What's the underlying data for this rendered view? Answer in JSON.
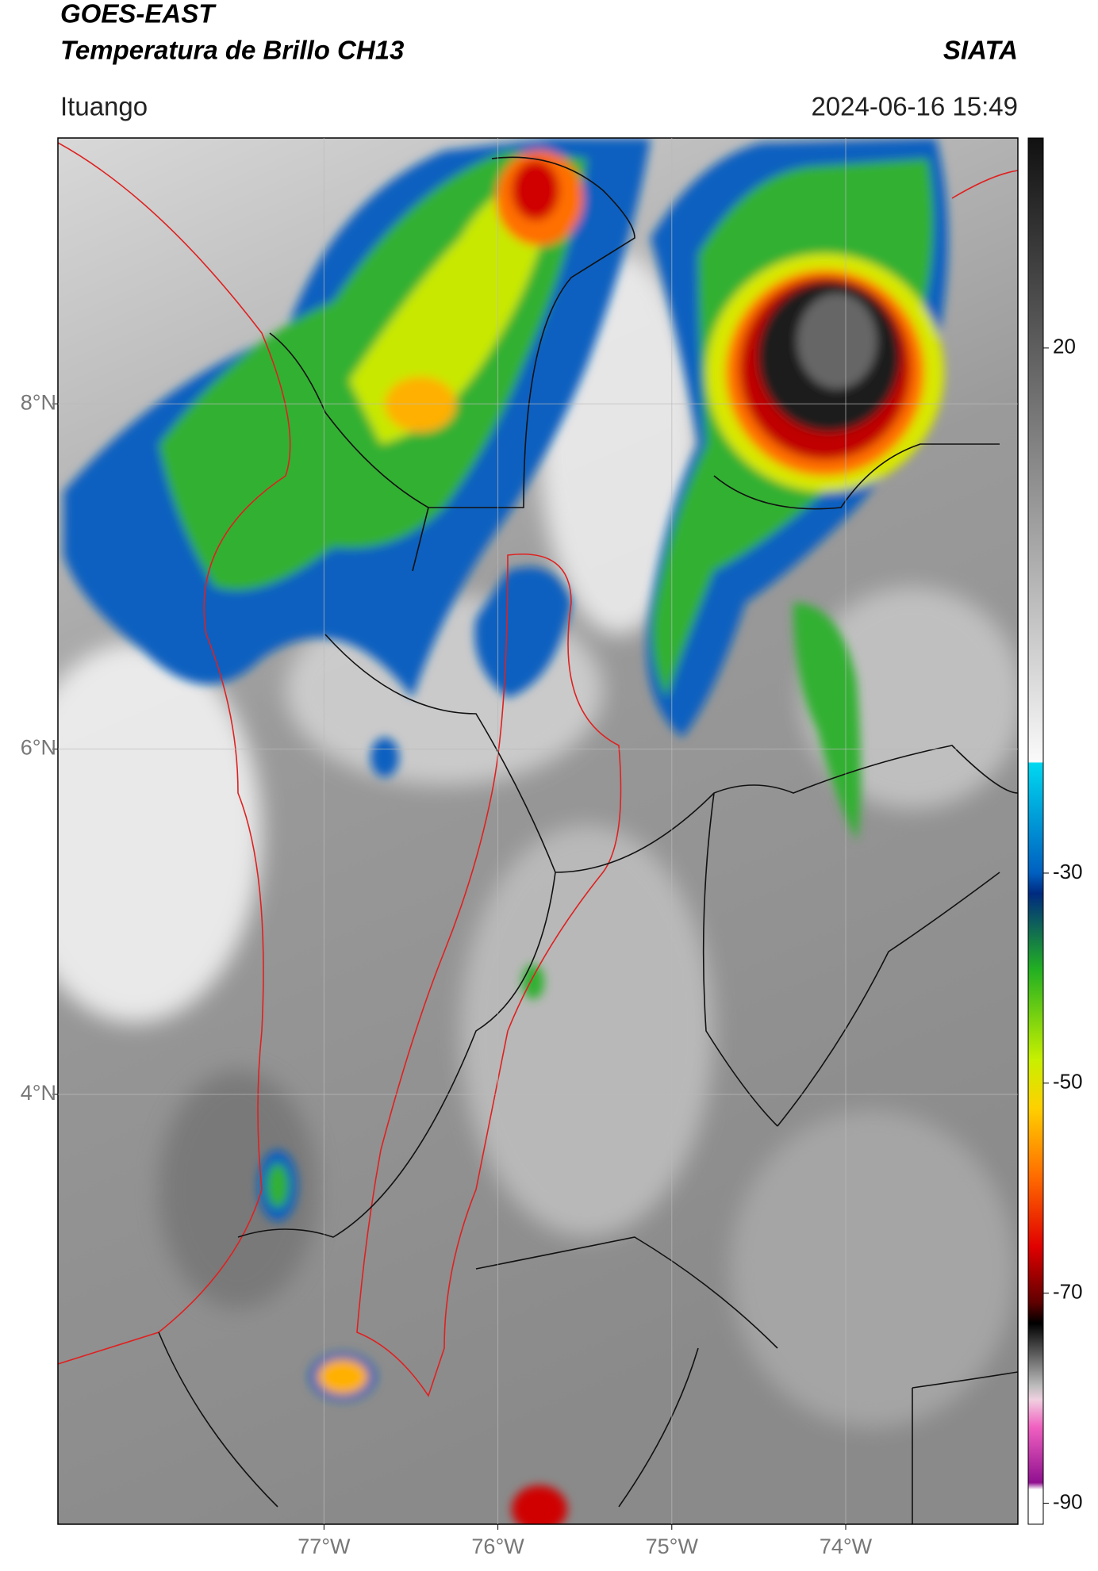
{
  "header": {
    "title_line1": "GOES-EAST",
    "title_line2": "Temperatura de Brillo CH13",
    "brand": "SIATA",
    "location": "Ituango",
    "datetime": "2024-06-16 15:49"
  },
  "map": {
    "xlim": [
      -78.53,
      -73.01
    ],
    "ylim": [
      1.51,
      9.54
    ],
    "xticks": [
      {
        "value": -77,
        "label": "77°W"
      },
      {
        "value": -76,
        "label": "76°W"
      },
      {
        "value": -75,
        "label": "75°W"
      },
      {
        "value": -74,
        "label": "74°W"
      }
    ],
    "yticks": [
      {
        "value": 4,
        "label": "4°N"
      },
      {
        "value": 6,
        "label": "6°N"
      },
      {
        "value": 8,
        "label": "8°N"
      }
    ],
    "grid": true
  },
  "colorbar": {
    "lim": [
      -92,
      40
    ],
    "ticks": [
      20,
      -30,
      -50,
      -70,
      -90
    ]
  }
}
